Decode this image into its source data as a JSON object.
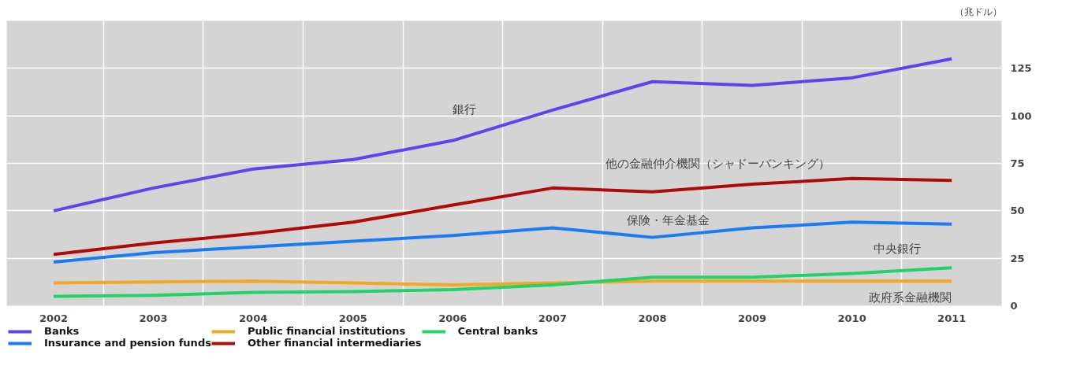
{
  "chart_data": {
    "type": "line",
    "ylabel": "（兆ドル）",
    "x": [
      2002,
      2003,
      2004,
      2005,
      2006,
      2007,
      2008,
      2009,
      2010,
      2011
    ],
    "xlim": [
      2001.53,
      2011.5
    ],
    "xticks": [
      2002,
      2003,
      2004,
      2005,
      2006,
      2007,
      2008,
      2009,
      2010,
      2011
    ],
    "ylim": [
      0,
      150
    ],
    "yticks": [
      0,
      25,
      50,
      75,
      100,
      125
    ],
    "grid": true,
    "legend": "bottom",
    "series": [
      {
        "name": "Banks",
        "color": "#5b45f0",
        "values": [
          50,
          62,
          72,
          77,
          87,
          103,
          118,
          116,
          120,
          130
        ]
      },
      {
        "name": "Public financial institutions",
        "color": "#f5a623",
        "values": [
          12,
          12.5,
          13,
          12,
          11,
          12,
          13,
          13,
          13,
          13
        ]
      },
      {
        "name": "Central banks",
        "color": "#22d36a",
        "values": [
          5,
          5.5,
          7,
          7.5,
          8.5,
          11,
          15,
          15,
          17,
          20
        ]
      },
      {
        "name": "Insurance and pension funds",
        "color": "#1a7cf5",
        "values": [
          23,
          28,
          31,
          34,
          37,
          41,
          36,
          41,
          44,
          43
        ]
      },
      {
        "name": "Other financial intermediaries",
        "color": "#b00a0a",
        "values": [
          27,
          33,
          38,
          44,
          53,
          62,
          60,
          64,
          67,
          66
        ]
      }
    ],
    "annotations": [
      "銀行",
      "他の金融仲介機関（シャドーバンキング）",
      "保険・年金基金",
      "中央銀行",
      "政府系金融機関"
    ]
  }
}
